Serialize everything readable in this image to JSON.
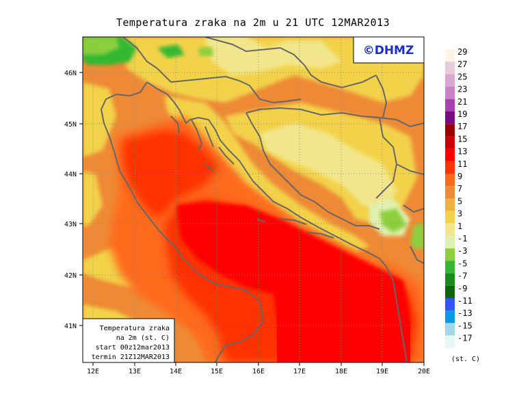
{
  "title": "Temperatura zraka na 2m u 21 UTC 12MAR2013",
  "logo": "©DHMZ",
  "info_box": {
    "line1": "Temperatura zraka",
    "line2": "na 2m (st. C)",
    "line3": "start 00z12mar2013",
    "line4": "termin 21Z12MAR2013"
  },
  "lon_ticks": [
    "12E",
    "13E",
    "14E",
    "15E",
    "16E",
    "17E",
    "18E",
    "19E",
    "20E"
  ],
  "lat_ticks": [
    "46N",
    "45N",
    "44N",
    "43N",
    "42N",
    "41N"
  ],
  "colorbar": {
    "unit": "(st. C)",
    "labels": [
      "29",
      "27",
      "25",
      "23",
      "21",
      "19",
      "17",
      "15",
      "13",
      "11",
      "9",
      "7",
      "5",
      "3",
      "1",
      "-1",
      "-3",
      "-5",
      "-7",
      "-9",
      "-11",
      "-13",
      "-15",
      "-17"
    ],
    "colors": [
      "#fff3e6",
      "#e6ccd9",
      "#d9a8d1",
      "#cc80c7",
      "#a640b3",
      "#7a0a80",
      "#990000",
      "#cc0000",
      "#ff0000",
      "#ff3300",
      "#ff6a1a",
      "#ee8a35",
      "#f0b040",
      "#f2d24a",
      "#f2e68c",
      "#e0f0b0",
      "#8ccf3c",
      "#33b833",
      "#1a8c1a",
      "#0d660d",
      "#3355ff",
      "#0a99e6",
      "#a0d8e6",
      "#e6f7f7"
    ]
  },
  "legend_colors": {
    "sea_hot": "#ff0000",
    "sea_warm": "#ff3300",
    "land_orange": "#ee8a35",
    "land_yellow": "#f2d24a",
    "land_pale": "#f2e68c",
    "cold_green": "#33b833",
    "light_green": "#8ccf3c",
    "border": "#666666"
  }
}
